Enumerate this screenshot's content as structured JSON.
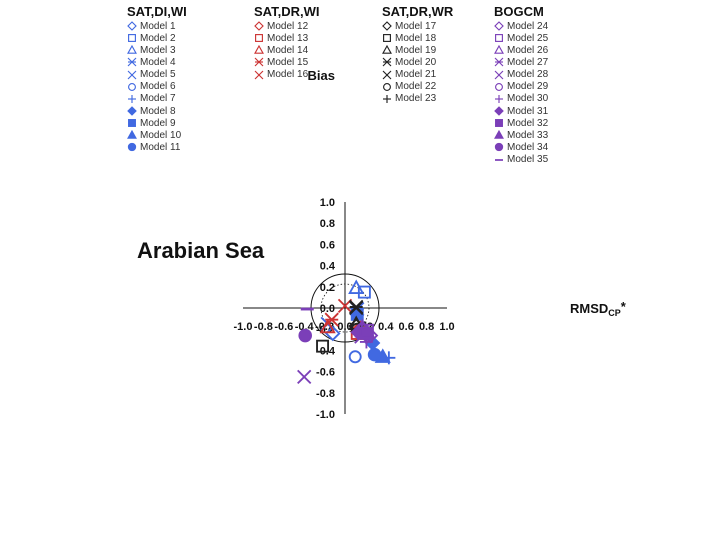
{
  "chart_data": {
    "type": "scatter",
    "panel_label": "Arabian Sea",
    "xlabel": "RMSD",
    "xlabel_sub": "CP",
    "xlabel_sup": "*",
    "ylabel": "Bias",
    "xlim": [
      -1.0,
      1.0
    ],
    "ylim": [
      -1.0,
      1.0
    ],
    "x_ticks": [
      "-1.0",
      "-0.8",
      "-0.6",
      "-0.4",
      "-0.2",
      "0.0",
      "0.2",
      "0.4",
      "0.6",
      "0.8",
      "1.0"
    ],
    "y_ticks": [
      "1.0",
      "0.8",
      "0.6",
      "0.4",
      "0.2",
      "0.0",
      "-0.2",
      "-0.4",
      "-0.6",
      "-0.8",
      "-1.0"
    ],
    "reference_circles": [
      "solid",
      "dotted"
    ],
    "colors": {
      "SAT,DI,WI": "#4169e1",
      "SAT,DR,WI": "#cc3333",
      "SAT,DR,WR": "#222222",
      "BOGCM": "#7b3fb8"
    },
    "groups": [
      {
        "name": "SAT,DI,WI",
        "models": [
          {
            "label": "Model 1",
            "marker": "diamond-open",
            "x": -0.12,
            "y": -0.24
          },
          {
            "label": "Model 2",
            "marker": "square-open",
            "x": 0.19,
            "y": 0.15
          },
          {
            "label": "Model 3",
            "marker": "triangle-open",
            "x": 0.11,
            "y": 0.19
          },
          {
            "label": "Model 4",
            "marker": "asterisk",
            "x": 0.12,
            "y": -0.01
          },
          {
            "label": "Model 5",
            "marker": "x",
            "x": -0.17,
            "y": -0.15
          },
          {
            "label": "Model 6",
            "marker": "circle-open",
            "x": 0.1,
            "y": -0.46
          },
          {
            "label": "Model 7",
            "marker": "plus",
            "x": 0.43,
            "y": -0.47
          },
          {
            "label": "Model 8",
            "marker": "diamond-filled",
            "x": 0.27,
            "y": -0.33
          },
          {
            "label": "Model 9",
            "marker": "square-filled",
            "x": 0.12,
            "y": -0.06
          },
          {
            "label": "Model 10",
            "marker": "triangle-filled",
            "x": 0.37,
            "y": -0.46
          },
          {
            "label": "Model 11",
            "marker": "circle-filled",
            "x": 0.29,
            "y": -0.44
          }
        ]
      },
      {
        "name": "SAT,DR,WI",
        "models": [
          {
            "label": "Model 12",
            "marker": "diamond-open",
            "x": 0.15,
            "y": -0.19
          },
          {
            "label": "Model 13",
            "marker": "square-open",
            "x": 0.12,
            "y": -0.24
          },
          {
            "label": "Model 14",
            "marker": "triangle-open",
            "x": -0.17,
            "y": -0.18
          },
          {
            "label": "Model 15",
            "marker": "asterisk",
            "x": -0.13,
            "y": -0.11
          },
          {
            "label": "Model 16",
            "marker": "x",
            "x": 0.0,
            "y": 0.02
          }
        ]
      },
      {
        "name": "SAT,DR,WR",
        "models": [
          {
            "label": "Model 17",
            "marker": "diamond-open",
            "x": 0.11,
            "y": -0.17
          },
          {
            "label": "Model 18",
            "marker": "square-open",
            "x": -0.22,
            "y": -0.36
          },
          {
            "label": "Model 19",
            "marker": "triangle-open",
            "x": 0.11,
            "y": -0.15
          },
          {
            "label": "Model 20",
            "marker": "asterisk",
            "x": 0.11,
            "y": 0.01
          },
          {
            "label": "Model 21",
            "marker": "x",
            "x": 0.11,
            "y": 0.0
          },
          {
            "label": "Model 22",
            "marker": "circle-open",
            "x": 0.12,
            "y": -0.2
          },
          {
            "label": "Model 23",
            "marker": "plus",
            "x": 0.2,
            "y": -0.19
          }
        ]
      },
      {
        "name": "BOGCM",
        "models": [
          {
            "label": "Model 24",
            "marker": "diamond-open",
            "x": 0.25,
            "y": -0.26
          },
          {
            "label": "Model 25",
            "marker": "square-open",
            "x": 0.22,
            "y": -0.21
          },
          {
            "label": "Model 26",
            "marker": "triangle-open",
            "x": 0.17,
            "y": -0.18
          },
          {
            "label": "Model 27",
            "marker": "asterisk",
            "x": 0.16,
            "y": -0.27
          },
          {
            "label": "Model 28",
            "marker": "x",
            "x": -0.4,
            "y": -0.65
          },
          {
            "label": "Model 29",
            "marker": "circle-open",
            "x": 0.17,
            "y": -0.2
          },
          {
            "label": "Model 30",
            "marker": "plus",
            "x": 0.21,
            "y": -0.32
          },
          {
            "label": "Model 31",
            "marker": "diamond-filled",
            "x": 0.13,
            "y": -0.23
          },
          {
            "label": "Model 32",
            "marker": "square-filled",
            "x": 0.21,
            "y": -0.24
          },
          {
            "label": "Model 33",
            "marker": "triangle-filled",
            "x": 0.22,
            "y": -0.23
          },
          {
            "label": "Model 34",
            "marker": "circle-filled",
            "x": -0.39,
            "y": -0.26
          },
          {
            "label": "Model 35",
            "marker": "dash",
            "x": -0.37,
            "y": -0.01
          }
        ]
      }
    ]
  }
}
